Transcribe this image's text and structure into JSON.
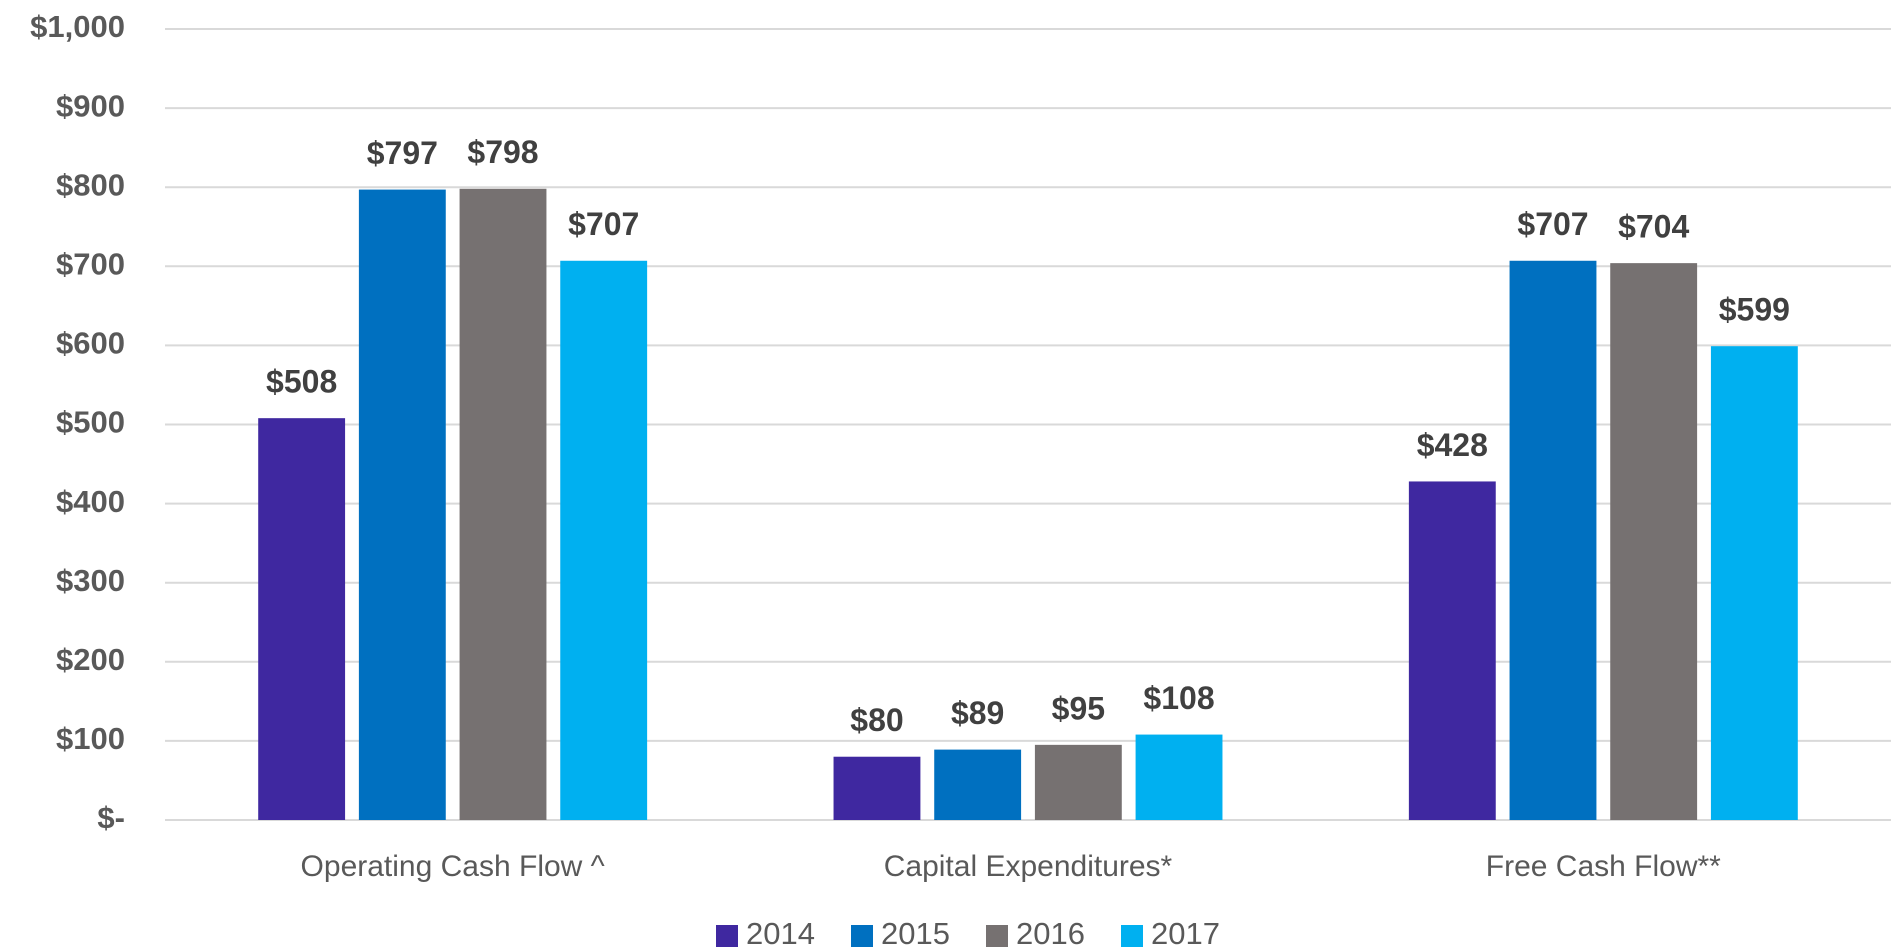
{
  "chart_data": {
    "type": "bar",
    "categories": [
      "Operating Cash Flow ^",
      "Capital Expenditures*",
      "Free Cash Flow**"
    ],
    "series": [
      {
        "name": "2014",
        "color": "#3f28a0",
        "values": [
          508,
          80,
          428
        ],
        "value_labels": [
          "$508",
          "$80",
          "$428"
        ]
      },
      {
        "name": "2015",
        "color": "#0070c0",
        "values": [
          797,
          89,
          707
        ],
        "value_labels": [
          "$797",
          "$89",
          "$707"
        ]
      },
      {
        "name": "2016",
        "color": "#767171",
        "values": [
          798,
          95,
          704
        ],
        "value_labels": [
          "$798",
          "$95",
          "$704"
        ]
      },
      {
        "name": "2017",
        "color": "#00b0f0",
        "values": [
          707,
          108,
          599
        ],
        "value_labels": [
          "$707",
          "$108",
          "$599"
        ]
      }
    ],
    "ylim": [
      0,
      1000
    ],
    "yticks": [
      {
        "value": 0,
        "label": "$-"
      },
      {
        "value": 100,
        "label": "$100"
      },
      {
        "value": 200,
        "label": "$200"
      },
      {
        "value": 300,
        "label": "$300"
      },
      {
        "value": 400,
        "label": "$400"
      },
      {
        "value": 500,
        "label": "$500"
      },
      {
        "value": 600,
        "label": "$600"
      },
      {
        "value": 700,
        "label": "$700"
      },
      {
        "value": 800,
        "label": "$800"
      },
      {
        "value": 900,
        "label": "$900"
      },
      {
        "value": 1000,
        "label": "$1,000"
      }
    ],
    "grid": true,
    "legend": "bottom"
  }
}
